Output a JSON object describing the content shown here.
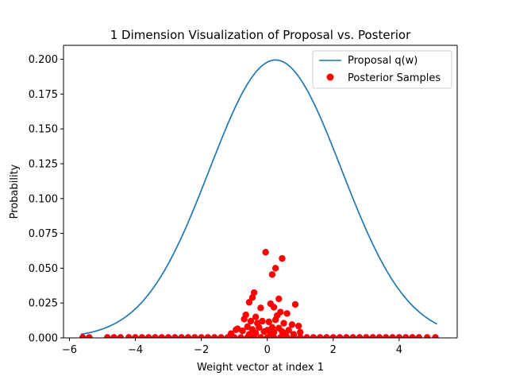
{
  "chart_data": {
    "type": "scatter",
    "title": "1 Dimension Visualization of Proposal vs. Posterior",
    "xlabel": "Weight vector at index 1",
    "ylabel": "Probability",
    "xlim": [
      -6.18,
      5.76
    ],
    "ylim": [
      0,
      0.21
    ],
    "xticks": [
      -6,
      -4,
      -2,
      0,
      2,
      4
    ],
    "xtick_labels": [
      "−6",
      "−4",
      "−2",
      "0",
      "2",
      "4"
    ],
    "yticks": [
      0,
      0.025,
      0.05,
      0.075,
      0.1,
      0.125,
      0.15,
      0.175,
      0.2
    ],
    "ytick_labels": [
      "0.000",
      "0.025",
      "0.050",
      "0.075",
      "0.100",
      "0.125",
      "0.150",
      "0.175",
      "0.200"
    ],
    "grid": false,
    "legend_position": "top-right",
    "series": [
      {
        "name": "Proposal q(w)",
        "kind": "line",
        "color": "#1f77b4",
        "distribution": "normal",
        "mean": 0.25,
        "std": 2.0,
        "x_range": [
          -5.65,
          5.15
        ]
      },
      {
        "name": "Posterior Samples",
        "kind": "scatter",
        "color": "#ff0000",
        "points": [
          [
            -0.05,
            0.0615
          ],
          [
            0.45,
            0.057
          ],
          [
            0.25,
            0.05
          ],
          [
            0.15,
            0.0455
          ],
          [
            -0.4,
            0.0325
          ],
          [
            -0.45,
            0.029
          ],
          [
            0.35,
            0.028
          ],
          [
            -0.55,
            0.0255
          ],
          [
            0.1,
            0.0245
          ],
          [
            0.85,
            0.024
          ],
          [
            0.2,
            0.022
          ],
          [
            -0.2,
            0.0215
          ],
          [
            0.4,
            0.0185
          ],
          [
            0.6,
            0.0175
          ],
          [
            0.3,
            0.016
          ],
          [
            -0.65,
            0.0165
          ],
          [
            -0.35,
            0.015
          ],
          [
            -0.7,
            0.0135
          ],
          [
            0.25,
            0.013
          ],
          [
            -0.5,
            0.012
          ],
          [
            -0.15,
            0.012
          ],
          [
            0.05,
            0.0115
          ],
          [
            -0.3,
            0.0105
          ],
          [
            0.5,
            0.0105
          ],
          [
            0.75,
            0.0095
          ],
          [
            0.95,
            0.0085
          ],
          [
            -0.9,
            0.0065
          ],
          [
            0.15,
            0.0075
          ],
          [
            -0.6,
            0.008
          ],
          [
            -0.25,
            0.0075
          ],
          [
            0.35,
            0.007
          ],
          [
            -0.45,
            0.006
          ],
          [
            -0.95,
            0.0058
          ],
          [
            0.0,
            0.0055
          ],
          [
            0.65,
            0.0055
          ],
          [
            -0.75,
            0.005
          ],
          [
            0.45,
            0.0045
          ],
          [
            -0.1,
            0.0045
          ],
          [
            0.2,
            0.004
          ],
          [
            1.0,
            0.004
          ],
          [
            -1.1,
            0.003
          ],
          [
            0.55,
            0.003
          ],
          [
            -0.35,
            0.0035
          ],
          [
            -0.55,
            0.0025
          ],
          [
            0.8,
            0.0025
          ],
          [
            0.1,
            0.0025
          ],
          [
            -5.6,
            0.0003
          ],
          [
            -5.4,
            0.0003
          ],
          [
            -4.85,
            0.0003
          ],
          [
            -4.65,
            0.0003
          ],
          [
            -4.45,
            0.0003
          ],
          [
            -4.2,
            0.0003
          ],
          [
            -4.0,
            0.0003
          ],
          [
            -3.8,
            0.0003
          ],
          [
            -3.6,
            0.0003
          ],
          [
            -3.4,
            0.0003
          ],
          [
            -3.2,
            0.0003
          ],
          [
            -3.0,
            0.0003
          ],
          [
            -2.8,
            0.0003
          ],
          [
            -2.6,
            0.0003
          ],
          [
            -2.4,
            0.0003
          ],
          [
            -2.2,
            0.0003
          ],
          [
            -2.0,
            0.0003
          ],
          [
            -1.8,
            0.0003
          ],
          [
            -1.6,
            0.0003
          ],
          [
            -1.4,
            0.0003
          ],
          [
            -1.2,
            0.0003
          ],
          [
            -1.0,
            0.0003
          ],
          [
            -0.8,
            0.0003
          ],
          [
            -0.6,
            0.0003
          ],
          [
            -0.4,
            0.0003
          ],
          [
            -0.2,
            0.0003
          ],
          [
            0.0,
            0.0003
          ],
          [
            0.2,
            0.0003
          ],
          [
            0.4,
            0.0003
          ],
          [
            0.6,
            0.0003
          ],
          [
            0.8,
            0.0003
          ],
          [
            1.0,
            0.0003
          ],
          [
            1.2,
            0.0003
          ],
          [
            1.4,
            0.0003
          ],
          [
            1.6,
            0.0003
          ],
          [
            1.8,
            0.0003
          ],
          [
            2.0,
            0.0003
          ],
          [
            2.2,
            0.0003
          ],
          [
            2.4,
            0.0003
          ],
          [
            2.6,
            0.0003
          ],
          [
            2.8,
            0.0003
          ],
          [
            3.0,
            0.0003
          ],
          [
            3.2,
            0.0003
          ],
          [
            3.4,
            0.0003
          ],
          [
            3.6,
            0.0003
          ],
          [
            3.8,
            0.0003
          ],
          [
            4.0,
            0.0003
          ],
          [
            4.2,
            0.0003
          ],
          [
            4.4,
            0.0003
          ],
          [
            4.6,
            0.0003
          ],
          [
            4.85,
            0.0003
          ],
          [
            5.1,
            0.0003
          ]
        ]
      }
    ]
  }
}
